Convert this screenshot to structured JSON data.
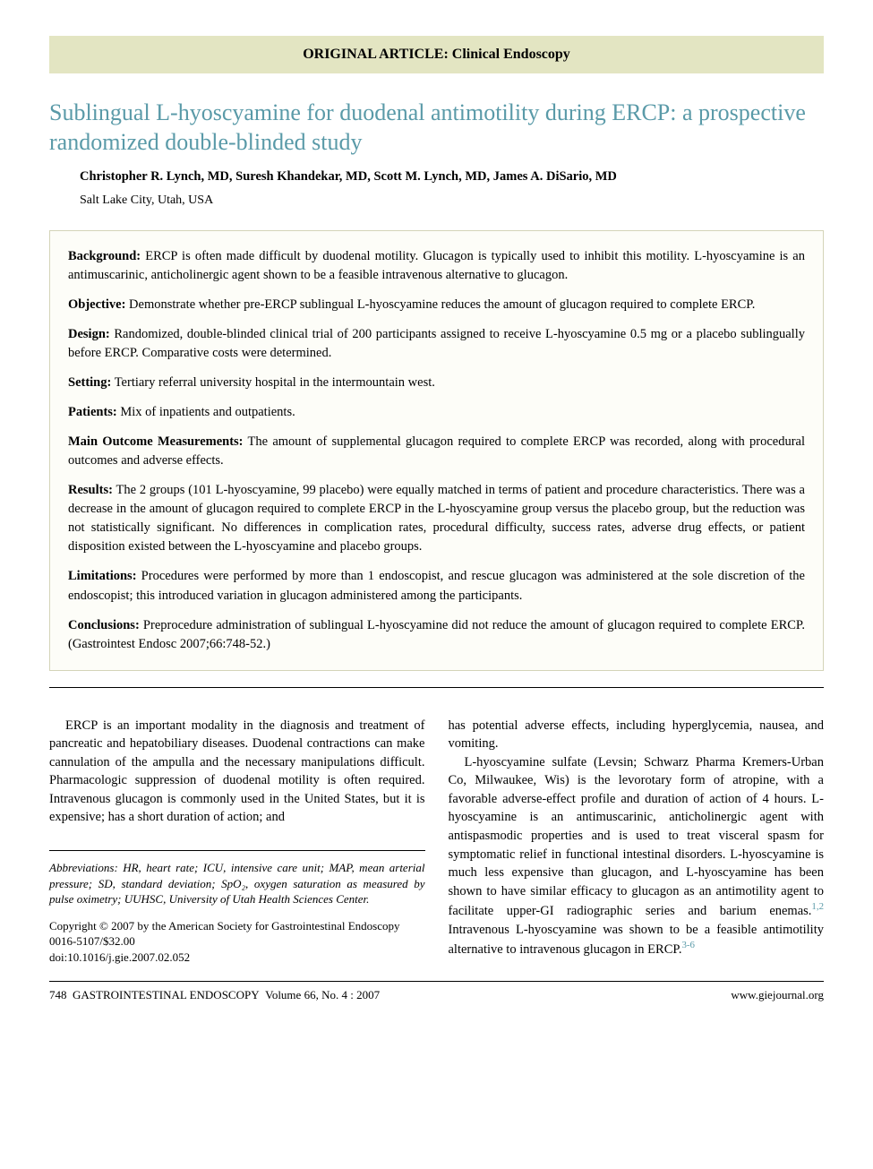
{
  "banner": "ORIGINAL ARTICLE: Clinical Endoscopy",
  "title": "Sublingual L-hyoscyamine for duodenal antimotility during ERCP: a prospective randomized double-blinded study",
  "authors": "Christopher R. Lynch, MD, Suresh Khandekar, MD, Scott M. Lynch, MD, James A. DiSario, MD",
  "affiliation": "Salt Lake City, Utah, USA",
  "abstract": {
    "background": {
      "label": "Background:",
      "text": " ERCP is often made difficult by duodenal motility. Glucagon is typically used to inhibit this motility. L-hyoscyamine is an antimuscarinic, anticholinergic agent shown to be a feasible intravenous alternative to glucagon."
    },
    "objective": {
      "label": "Objective:",
      "text": " Demonstrate whether pre-ERCP sublingual L-hyoscyamine reduces the amount of glucagon required to complete ERCP."
    },
    "design": {
      "label": "Design:",
      "text": " Randomized, double-blinded clinical trial of 200 participants assigned to receive L-hyoscyamine 0.5 mg or a placebo sublingually before ERCP. Comparative costs were determined."
    },
    "setting": {
      "label": "Setting:",
      "text": " Tertiary referral university hospital in the intermountain west."
    },
    "patients": {
      "label": "Patients:",
      "text": " Mix of inpatients and outpatients."
    },
    "mainoutcome": {
      "label": "Main Outcome Measurements:",
      "text": " The amount of supplemental glucagon required to complete ERCP was recorded, along with procedural outcomes and adverse effects."
    },
    "results": {
      "label": "Results:",
      "text": " The 2 groups (101 L-hyoscyamine, 99 placebo) were equally matched in terms of patient and procedure characteristics. There was a decrease in the amount of glucagon required to complete ERCP in the L-hyoscyamine group versus the placebo group, but the reduction was not statistically significant. No differences in complication rates, procedural difficulty, success rates, adverse drug effects, or patient disposition existed between the L-hyoscyamine and placebo groups."
    },
    "limitations": {
      "label": "Limitations:",
      "text": " Procedures were performed by more than 1 endoscopist, and rescue glucagon was administered at the sole discretion of the endoscopist; this introduced variation in glucagon administered among the participants."
    },
    "conclusions": {
      "label": "Conclusions:",
      "text": " Preprocedure administration of sublingual L-hyoscyamine did not reduce the amount of glucagon required to complete ERCP. (Gastrointest Endosc 2007;66:748-52.)"
    }
  },
  "body": {
    "col1p1": "ERCP is an important modality in the diagnosis and treatment of pancreatic and hepatobiliary diseases. Duodenal contractions can make cannulation of the ampulla and the necessary manipulations difficult. Pharmacologic suppression of duodenal motility is often required. Intravenous glucagon is commonly used in the United States, but it is expensive; has a short duration of action; and",
    "col2p1": "has potential adverse effects, including hyperglycemia, nausea, and vomiting.",
    "col2p2a": "L-hyoscyamine sulfate (Levsin; Schwarz Pharma Kremers-Urban Co, Milwaukee, Wis) is the levorotary form of atropine, with a favorable adverse-effect profile and duration of action of 4 hours. L-hyoscyamine is an antimuscarinic, anticholinergic agent with antispasmodic properties and is used to treat visceral spasm for symptomatic relief in functional intestinal disorders. L-hyoscyamine is much less expensive than glucagon, and L-hyoscyamine has been shown to have similar efficacy to glucagon as an antimotility agent to facilitate upper-GI radiographic series and barium enemas.",
    "col2p2b": " Intravenous L-hyoscyamine was shown to be a feasible antimotility alternative to intravenous glucagon in ERCP.",
    "ref1": "1,2",
    "ref2": "3-6"
  },
  "abbreviations": "Abbreviations: HR, heart rate; ICU, intensive care unit; MAP, mean arterial pressure; SD, standard deviation; SpO₂, oxygen saturation as measured by pulse oximetry; UUHSC, University of Utah Health Sciences Center.",
  "copyright": {
    "line1": "Copyright © 2007 by the American Society for Gastrointestinal Endoscopy",
    "line2": "0016-5107/$32.00",
    "line3": "doi:10.1016/j.gie.2007.02.052"
  },
  "footer": {
    "left_page": "748",
    "left_journal": "GASTROINTESTINAL ENDOSCOPY",
    "left_vol": "Volume 66, No. 4 : 2007",
    "right": "www.giejournal.org"
  },
  "colors": {
    "banner_bg": "#e3e5c2",
    "title_color": "#5a9aa8",
    "abstract_border": "#d4d4b8",
    "abstract_bg": "#fdfdf8"
  }
}
